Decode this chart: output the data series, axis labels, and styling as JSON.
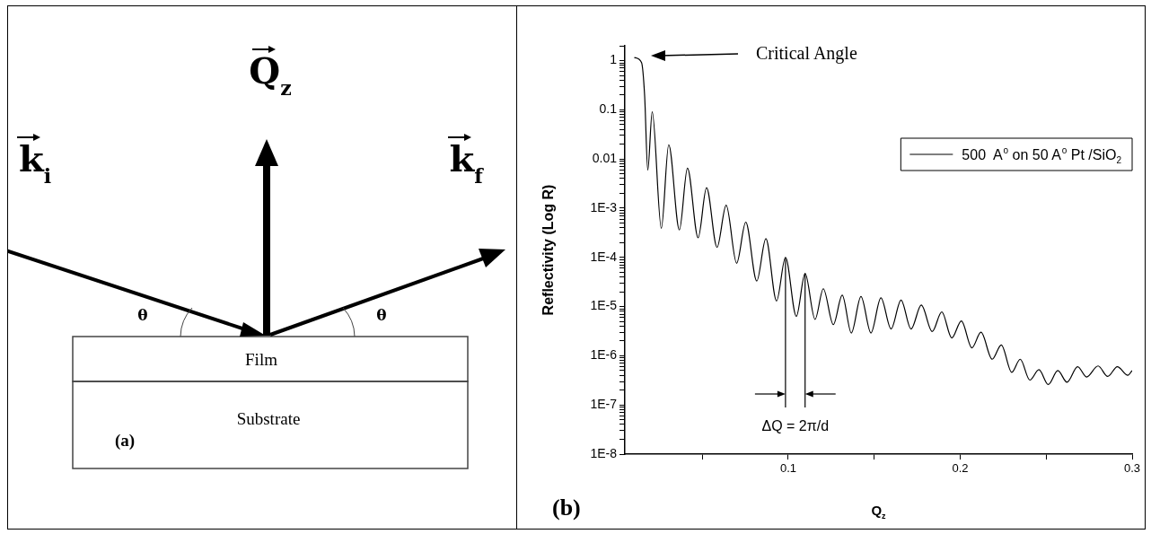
{
  "chart_data": [
    {
      "type": "other",
      "annotations": [
        "Q$_{z}$",
        "k$_{i}$",
        "k$_{f}$",
        "θ",
        "θ",
        "Film",
        "Substrate",
        "(a)"
      ]
    },
    {
      "type": "line",
      "xlabel": "Q$_{z}$",
      "ylabel": "Reflectivity (Log R)",
      "log": "y",
      "legend": "top right",
      "marker": "none",
      "xlim": [
        0.005,
        0.3
      ],
      "xticks": [
        {
          "value": 0.05,
          "label": null
        },
        0.1,
        {
          "value": 0.15,
          "label": null
        },
        0.2,
        {
          "value": 0.25,
          "label": null
        },
        0.3
      ],
      "ylim": [
        1e-08,
        2
      ],
      "yticks": [
        {
          "value": 1e-08,
          "label": "1E-8"
        },
        {
          "value": 2e-08,
          "label": null
        },
        {
          "value": 3e-08,
          "label": null
        },
        {
          "value": 4e-08,
          "label": null
        },
        {
          "value": 5e-08,
          "label": null
        },
        {
          "value": 6e-08,
          "label": null
        },
        {
          "value": 7e-08,
          "label": null
        },
        {
          "value": 8e-08,
          "label": null
        },
        {
          "value": 9e-08,
          "label": null
        },
        {
          "value": 1e-07,
          "label": "1E-7"
        },
        {
          "value": 2e-07,
          "label": null
        },
        {
          "value": 3e-07,
          "label": null
        },
        {
          "value": 4e-07,
          "label": null
        },
        {
          "value": 5e-07,
          "label": null
        },
        {
          "value": 6e-07,
          "label": null
        },
        {
          "value": 7e-07,
          "label": null
        },
        {
          "value": 8e-07,
          "label": null
        },
        {
          "value": 9e-07,
          "label": null
        },
        {
          "value": 1e-06,
          "label": "1E-6"
        },
        {
          "value": 2e-06,
          "label": null
        },
        {
          "value": 3e-06,
          "label": null
        },
        {
          "value": 4e-06,
          "label": null
        },
        {
          "value": 5e-06,
          "label": null
        },
        {
          "value": 6e-06,
          "label": null
        },
        {
          "value": 7e-06,
          "label": null
        },
        {
          "value": 8e-06,
          "label": null
        },
        {
          "value": 9e-06,
          "label": null
        },
        {
          "value": 1e-05,
          "label": "1E-5"
        },
        {
          "value": 2e-05,
          "label": null
        },
        {
          "value": 3e-05,
          "label": null
        },
        {
          "value": 4e-05,
          "label": null
        },
        {
          "value": 5e-05,
          "label": null
        },
        {
          "value": 6e-05,
          "label": null
        },
        {
          "value": 7e-05,
          "label": null
        },
        {
          "value": 8e-05,
          "label": null
        },
        {
          "value": 9e-05,
          "label": null
        },
        {
          "value": 0.0001,
          "label": "1E-4"
        },
        {
          "value": 0.0002,
          "label": null
        },
        {
          "value": 0.0003,
          "label": null
        },
        {
          "value": 0.0004,
          "label": null
        },
        {
          "value": 0.0005,
          "label": null
        },
        {
          "value": 0.0006,
          "label": null
        },
        {
          "value": 0.0007,
          "label": null
        },
        {
          "value": 0.0008,
          "label": null
        },
        {
          "value": 0.0009,
          "label": null
        },
        {
          "value": 0.001,
          "label": "1E-3"
        },
        {
          "value": 0.002,
          "label": null
        },
        {
          "value": 0.003,
          "label": null
        },
        {
          "value": 0.004,
          "label": null
        },
        {
          "value": 0.005,
          "label": null
        },
        {
          "value": 0.006,
          "label": null
        },
        {
          "value": 0.007,
          "label": null
        },
        {
          "value": 0.008,
          "label": null
        },
        {
          "value": 0.009,
          "label": null
        },
        0.01,
        {
          "value": 0.02,
          "label": null
        },
        {
          "value": 0.03,
          "label": null
        },
        {
          "value": 0.04,
          "label": null
        },
        {
          "value": 0.05,
          "label": null
        },
        {
          "value": 0.06,
          "label": null
        },
        {
          "value": 0.07,
          "label": null
        },
        {
          "value": 0.08,
          "label": null
        },
        {
          "value": 0.09,
          "label": null
        },
        0.1,
        {
          "value": 0.2,
          "label": null
        },
        {
          "value": 0.3,
          "label": null
        },
        {
          "value": 0.4,
          "label": null
        },
        {
          "value": 0.5,
          "label": null
        },
        {
          "value": 0.6,
          "label": null
        },
        {
          "value": 0.7,
          "label": null
        },
        {
          "value": 0.8,
          "label": null
        },
        {
          "value": 0.9,
          "label": null
        },
        1,
        {
          "value": 2,
          "label": null
        }
      ],
      "x": [
        0.0105,
        0.0147,
        0.0165,
        0.0183,
        0.0209,
        0.0262,
        0.0305,
        0.0367,
        0.0414,
        0.0476,
        0.0525,
        0.0586,
        0.0639,
        0.07,
        0.0753,
        0.0817,
        0.087,
        0.0932,
        0.0984,
        0.1047,
        0.1098,
        0.1156,
        0.1204,
        0.1262,
        0.1314,
        0.1367,
        0.1423,
        0.1481,
        0.1539,
        0.1598,
        0.1656,
        0.1714,
        0.1774,
        0.1837,
        0.1893,
        0.1951,
        0.2007,
        0.2068,
        0.2121,
        0.2186,
        0.2239,
        0.23,
        0.2349,
        0.2405,
        0.2458,
        0.2512,
        0.2568,
        0.2621,
        0.2683,
        0.2735,
        0.2802,
        0.2858,
        0.2914,
        0.2975,
        0.3
      ],
      "series": [
        {
          "name": "500  A$^{o}$ on 50 A$^{o}$ Pt /SiO$_{2}$",
          "color": "#000000",
          "values": [
            1.15,
            0.91,
            0.19,
            0.0059,
            0.091,
            0.00039,
            0.0195,
            0.00036,
            0.0065,
            0.00025,
            0.0026,
            0.00016,
            0.00115,
            7.6e-05,
            0.00052,
            3.3e-05,
            0.00024,
            1.3e-05,
            0.0001,
            6.3e-06,
            4.7e-05,
            5.5e-06,
            2.3e-05,
            4.3e-06,
            1.7e-05,
            2.9e-06,
            1.6e-05,
            2.9e-06,
            1.5e-05,
            3.5e-06,
            1.35e-05,
            3.5e-06,
            1.07e-05,
            3.1e-06,
            7.8e-06,
            2.3e-06,
            5.1e-06,
            1.45e-06,
            3e-06,
            8.5e-07,
            1.66e-06,
            4.6e-07,
            8.5e-07,
            3.2e-07,
            5.2e-07,
            2.6e-07,
            5e-07,
            2.9e-07,
            6e-07,
            3.7e-07,
            6.2e-07,
            3.8e-07,
            6e-07,
            4e-07,
            5e-07
          ]
        }
      ],
      "ref_lines": [
        {
          "axis": "x",
          "value": 0.0984
        },
        {
          "axis": "x",
          "value": 0.1098
        }
      ],
      "annotations": [
        "Critical Angle",
        "ΔQ = 2π/d",
        "(b)"
      ]
    }
  ]
}
